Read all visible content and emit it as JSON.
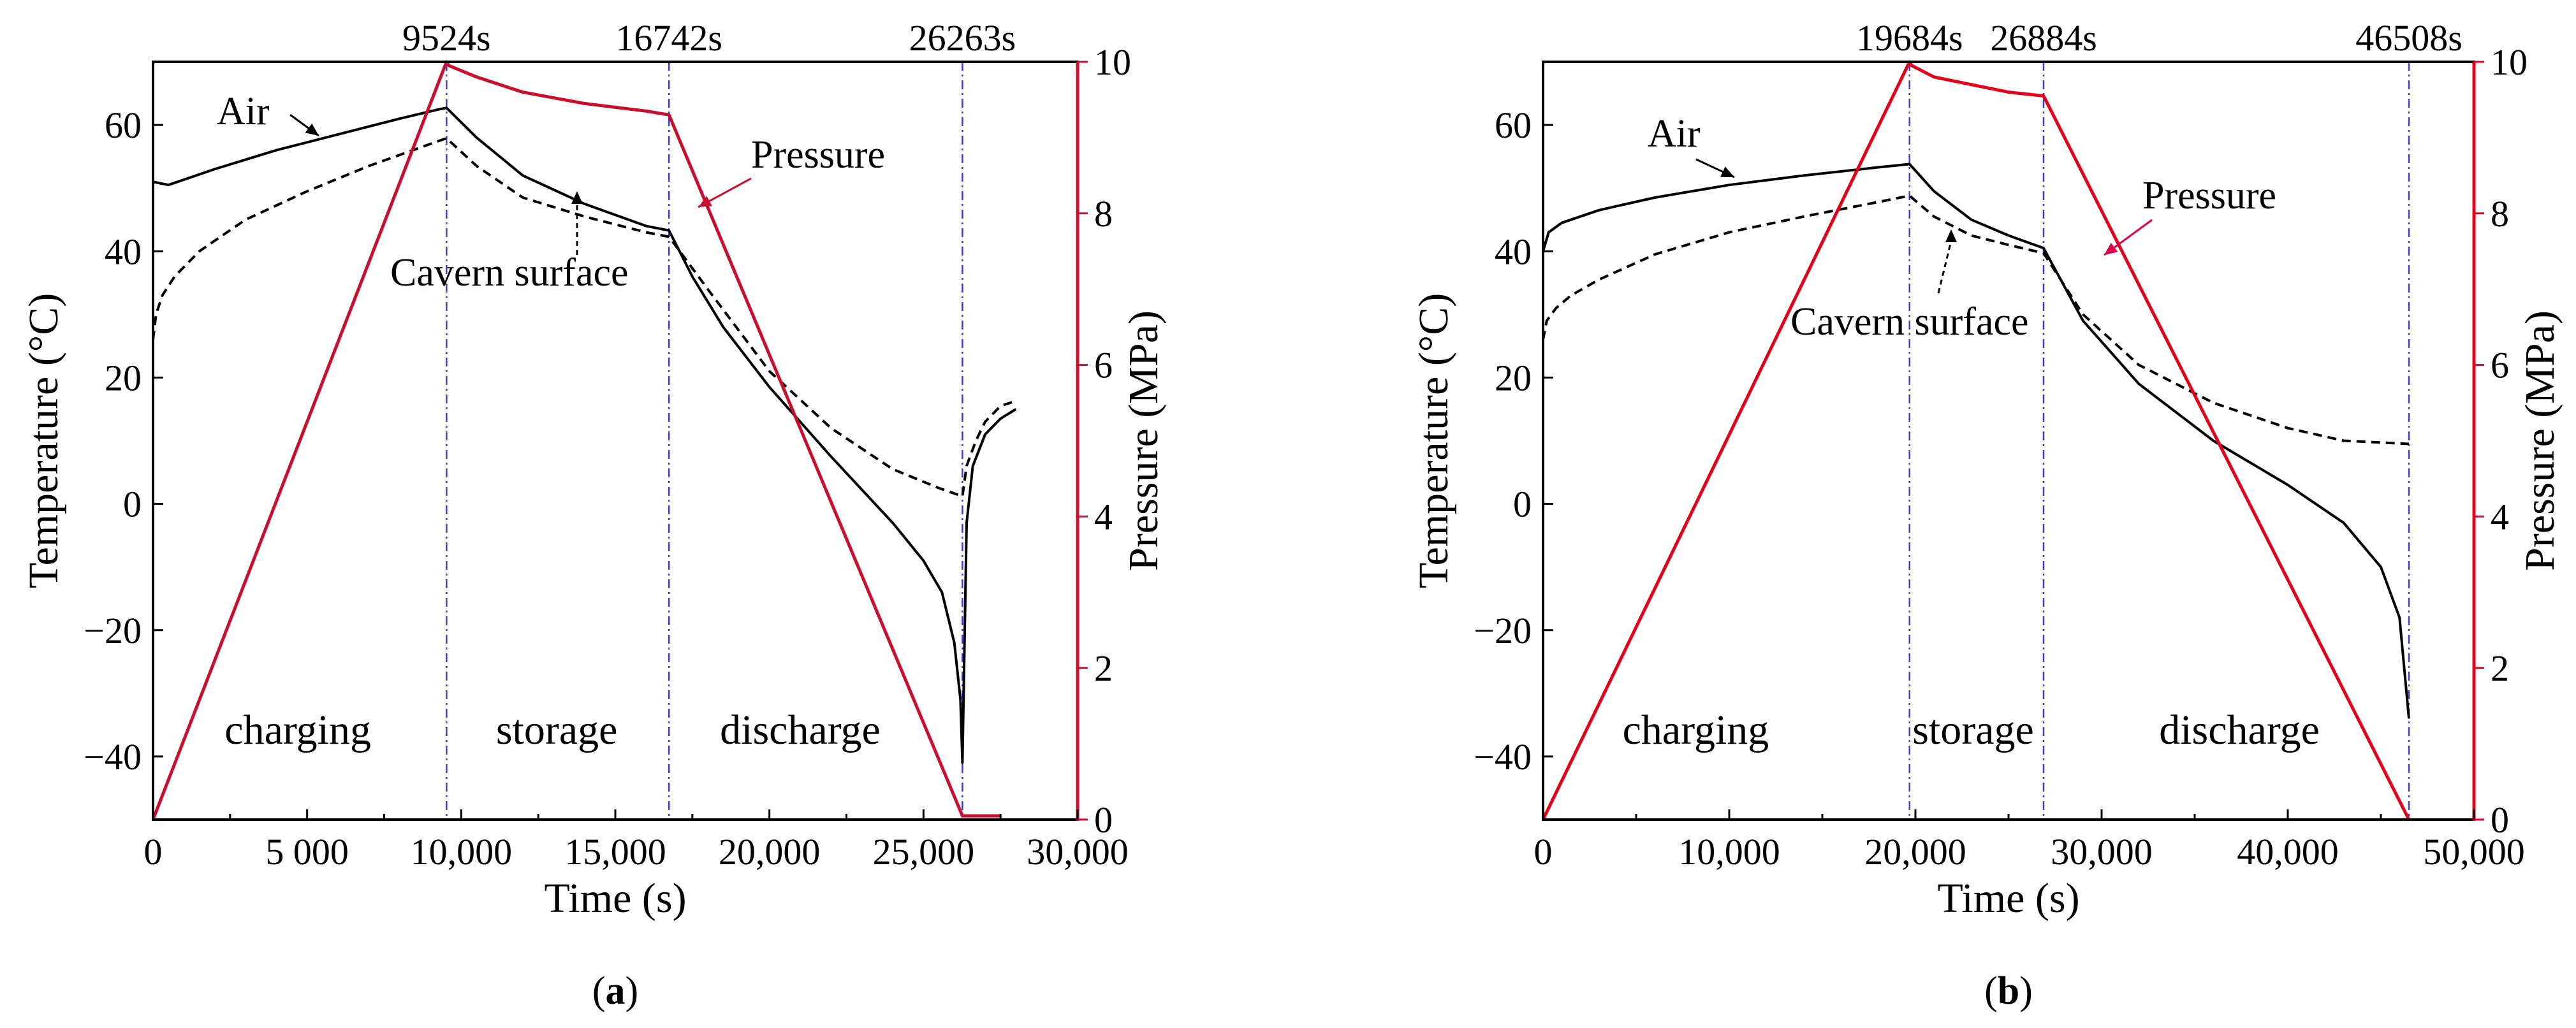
{
  "colors": {
    "axis": "#000000",
    "pressure_a": "#c8102e",
    "pressure_b": "#e3001b",
    "pressure_axis_a": "#c8102e",
    "pressure_axis_b": "#e3001b",
    "pressure_label_b": "#e0004a",
    "divider": "#3b3bd6",
    "air": "#000000",
    "cavern": "#000000"
  },
  "chart_data": [
    {
      "type": "line",
      "panel_label": "a",
      "xlabel": "Time (s)",
      "ylabel_left": "Temperature (°C)",
      "ylabel_right": "Pressure (MPa)",
      "xlim": [
        0,
        30000
      ],
      "ylim_left": [
        -50,
        70
      ],
      "ylim_right": [
        0,
        10
      ],
      "x_ticks": [
        0,
        5000,
        10000,
        15000,
        20000,
        25000,
        30000
      ],
      "x_tick_labels": [
        "0",
        "5 000",
        "10,000",
        "15,000",
        "20,000",
        "25,000",
        "30,000"
      ],
      "y_left_ticks": [
        -40,
        -20,
        0,
        20,
        40,
        60
      ],
      "y_left_tick_labels": [
        "−40",
        "−20",
        "0",
        "20",
        "40",
        "60"
      ],
      "y_right_ticks": [
        0,
        2,
        4,
        6,
        8,
        10
      ],
      "y_right_tick_labels": [
        "0",
        "2",
        "4",
        "6",
        "8",
        "10"
      ],
      "dividers": [
        9524,
        16742,
        26263
      ],
      "divider_labels": [
        "9524s",
        "16742s",
        "26263s"
      ],
      "phases": [
        {
          "label": "charging",
          "x": 4700
        },
        {
          "label": "storage",
          "x": 13100
        },
        {
          "label": "discharge",
          "x": 21000
        }
      ],
      "annotations": {
        "air": "Air",
        "cavern": "Cavern surface",
        "pressure": "Pressure"
      },
      "series": [
        {
          "name": "Air",
          "axis": "left",
          "style": "solid",
          "x": [
            0,
            500,
            2000,
            4000,
            6000,
            8000,
            9300,
            9524,
            10500,
            12000,
            14000,
            16000,
            16742,
            17500,
            18500,
            20000,
            22000,
            24000,
            25000,
            25600,
            26000,
            26200,
            26263,
            26400,
            26600,
            27000,
            27500,
            28000
          ],
          "y": [
            51,
            50.5,
            53,
            56,
            58.5,
            61,
            62.5,
            62.7,
            58,
            52,
            47.5,
            44,
            43.3,
            36,
            28,
            18.5,
            7.5,
            -3,
            -9,
            -14,
            -22,
            -31,
            -41,
            -3,
            6,
            11,
            13.5,
            15
          ]
        },
        {
          "name": "Cavern surface",
          "axis": "left",
          "style": "dashed",
          "x": [
            0,
            100,
            300,
            700,
            1500,
            3000,
            5000,
            7000,
            9000,
            9524,
            10500,
            12000,
            14000,
            16000,
            16742,
            18000,
            20000,
            22000,
            24000,
            25500,
            26263,
            26400,
            26700,
            27000,
            27500,
            28000
          ],
          "y": [
            26,
            30,
            33,
            36,
            40,
            45,
            49.5,
            53.5,
            57,
            57.9,
            53.5,
            48.5,
            45.5,
            43,
            42.3,
            34,
            21,
            12,
            5.5,
            2.5,
            1.2,
            6,
            10,
            13,
            15.5,
            16.3
          ]
        },
        {
          "name": "Pressure",
          "axis": "right",
          "style": "solid",
          "color_key": "pressure_a",
          "x": [
            0,
            9524,
            9600,
            10500,
            12000,
            14000,
            16000,
            16742,
            26263,
            27500
          ],
          "y": [
            0,
            10,
            9.95,
            9.8,
            9.6,
            9.45,
            9.35,
            9.3,
            0.05,
            0.05
          ]
        }
      ]
    },
    {
      "type": "line",
      "panel_label": "b",
      "xlabel": "Time (s)",
      "ylabel_left": "Temperature (°C)",
      "ylabel_right": "Pressure (MPa)",
      "xlim": [
        0,
        50000
      ],
      "ylim_left": [
        -50,
        70
      ],
      "ylim_right": [
        0,
        10
      ],
      "x_ticks": [
        0,
        10000,
        20000,
        30000,
        40000,
        50000
      ],
      "x_tick_labels": [
        "0",
        "10,000",
        "20,000",
        "30,000",
        "40,000",
        "50,000"
      ],
      "y_left_ticks": [
        -40,
        -20,
        0,
        20,
        40,
        60
      ],
      "y_left_tick_labels": [
        "−40",
        "−20",
        "0",
        "20",
        "40",
        "60"
      ],
      "y_right_ticks": [
        0,
        2,
        4,
        6,
        8,
        10
      ],
      "y_right_tick_labels": [
        "0",
        "2",
        "4",
        "6",
        "8",
        "10"
      ],
      "dividers": [
        19684,
        26884,
        46508
      ],
      "divider_labels": [
        "19684s",
        "26884s",
        "46508s"
      ],
      "phases": [
        {
          "label": "charging",
          "x": 8200
        },
        {
          "label": "storage",
          "x": 23100
        },
        {
          "label": "discharge",
          "x": 37400
        }
      ],
      "annotations": {
        "air": "Air",
        "cavern": "Cavern surface",
        "pressure": "Pressure"
      },
      "series": [
        {
          "name": "Air",
          "axis": "left",
          "style": "solid",
          "x": [
            0,
            300,
            1000,
            3000,
            6000,
            10000,
            14000,
            18000,
            19684,
            21000,
            23000,
            25000,
            26884,
            29000,
            32000,
            36000,
            40000,
            43000,
            45000,
            46000,
            46508
          ],
          "y": [
            40,
            43,
            44.5,
            46.5,
            48.5,
            50.5,
            52,
            53.3,
            53.8,
            49.5,
            45,
            42.5,
            40.5,
            29,
            19,
            10,
            3,
            -3,
            -10,
            -18,
            -34
          ]
        },
        {
          "name": "Cavern surface",
          "axis": "left",
          "style": "dashed",
          "x": [
            0,
            200,
            700,
            1500,
            3000,
            6000,
            10000,
            14000,
            18000,
            19684,
            21000,
            23000,
            25000,
            26884,
            29000,
            32000,
            36000,
            40000,
            43000,
            46508
          ],
          "y": [
            26,
            29,
            31,
            33,
            35.5,
            39.5,
            43,
            45.5,
            47.8,
            48.8,
            45.5,
            42.5,
            41,
            39.7,
            30,
            22,
            16,
            12,
            10,
            9.5
          ]
        },
        {
          "name": "Pressure",
          "axis": "right",
          "style": "solid",
          "color_key": "pressure_b",
          "x": [
            0,
            19684,
            19800,
            21000,
            23000,
            25000,
            26884,
            46508
          ],
          "y": [
            0,
            10,
            9.95,
            9.8,
            9.7,
            9.6,
            9.55,
            0
          ]
        }
      ]
    }
  ]
}
